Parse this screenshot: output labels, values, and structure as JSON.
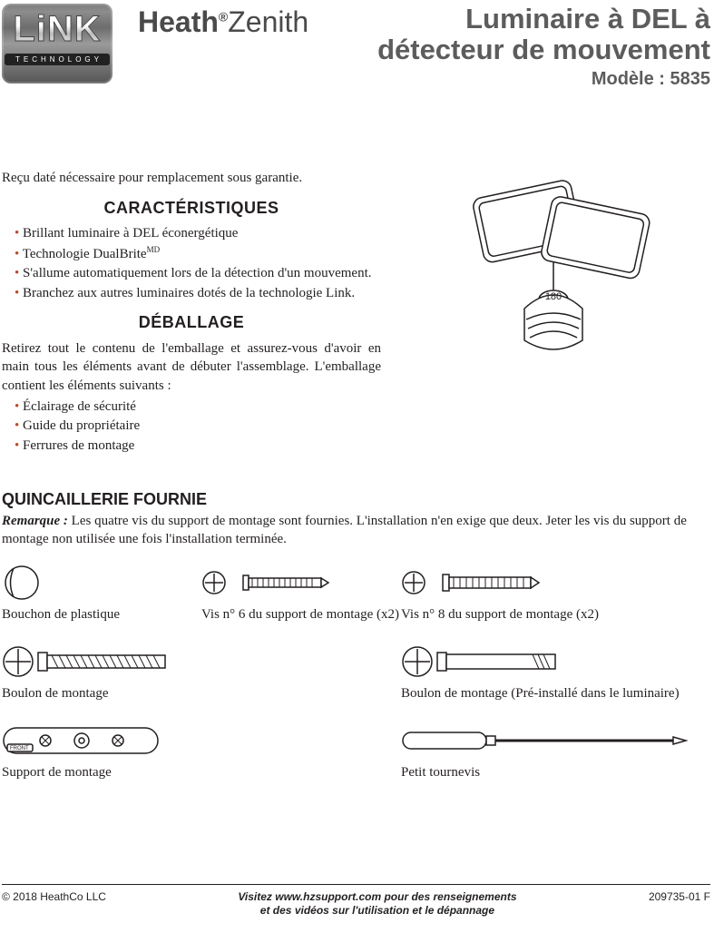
{
  "colors": {
    "text": "#231f20",
    "bullet": "#ba4a29",
    "title_gray": "#5c5c5c",
    "logo_gray": "#4a4a4a"
  },
  "header": {
    "link_word": "LiNK",
    "link_sub": "TECHNOLOGY",
    "brand_heath": "Heath",
    "brand_reg": "®",
    "brand_zenith": "Zenith",
    "title_line1": "Luminaire à DEL à",
    "title_line2": "détecteur de mouvement",
    "model": "Modèle : 5835"
  },
  "warranty_note": "Reçu daté nécessaire pour remplacement sous garantie.",
  "sections": {
    "features_heading": "CARACTÉRISTIQUES",
    "features": [
      "Brillant luminaire à DEL éconergétique",
      "Technologie DualBrite",
      "S'allume automatiquement lors de la détection d'un mouvement.",
      "Branchez aux autres luminaires dotés de la technologie Link."
    ],
    "features_md_index": 1,
    "unboxing_heading": "DÉBALLAGE",
    "unboxing_intro": "Retirez tout le contenu de l'emballage et assurez-vous d'avoir en main tous les éléments avant de débuter l'assemblage. L'emballage contient les éléments suivants :",
    "unboxing_items": [
      "Éclairage de sécurité",
      "Guide du propriétaire",
      "Ferrures de montage"
    ]
  },
  "hardware": {
    "heading": "QUINCAILLERIE FOURNIE",
    "remarque_label": "Remarque :",
    "remarque_text": " Les quatre vis du support de montage sont fournies. L'installation n'en exige que deux. Jeter les vis du support de montage non utilisée une fois l'installation terminée.",
    "items_row1": [
      {
        "label": "Bouchon de plastique"
      },
      {
        "label": "Vis n° 6 du support de montage (x2)"
      },
      {
        "label": "Vis n° 8 du support de montage (x2)"
      }
    ],
    "items_row2": [
      {
        "label": "Boulon de montage"
      },
      {
        "label": "Boulon de montage (Pré-installé dans le luminaire)"
      }
    ],
    "items_row3": [
      {
        "label": "Support de montage",
        "front_label": "FRONT"
      },
      {
        "label": "Petit tournevis"
      }
    ]
  },
  "footer": {
    "copyright": "© 2018 HeathCo LLC",
    "center_line1": "Visitez www.hzsupport.com pour des renseignements",
    "center_line2": "et des vidéos sur l'utilisation et le dépannage",
    "doc_number": "209735-01 F"
  }
}
